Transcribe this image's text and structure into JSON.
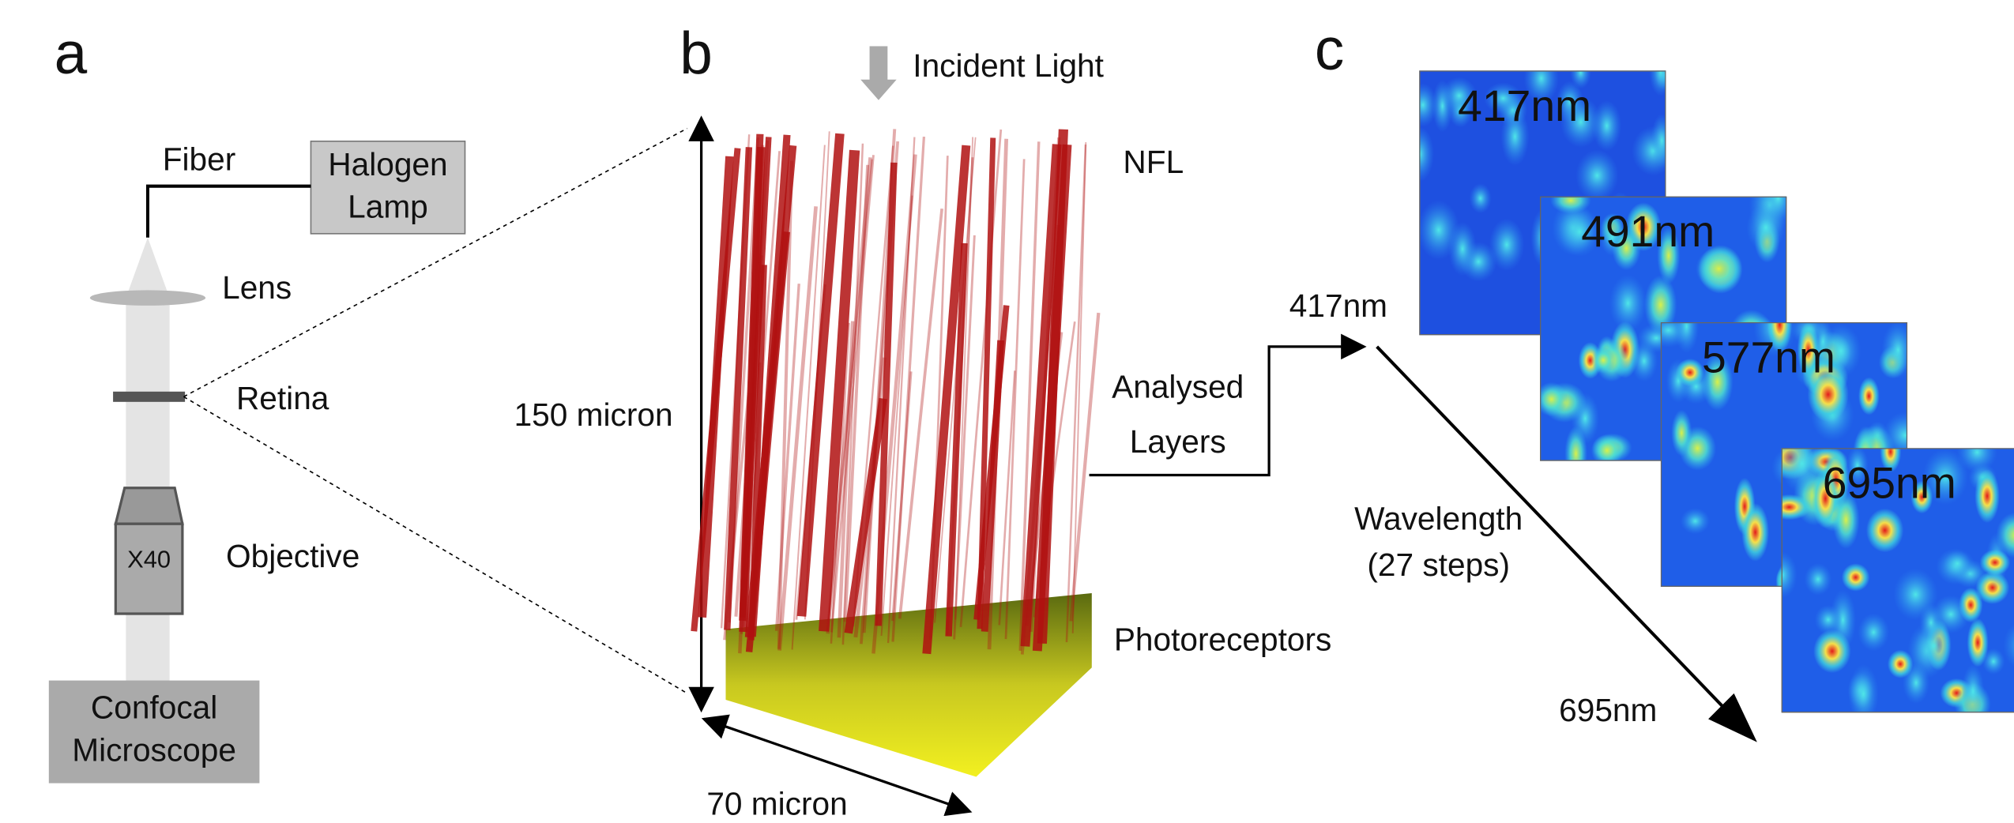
{
  "panel_a": {
    "label": "a",
    "fiber": "Fiber",
    "lamp": [
      "Halogen",
      "Lamp"
    ],
    "lens": "Lens",
    "retina": "Retina",
    "magnification": "X40",
    "objective": "Objective",
    "microscope": [
      "Confocal",
      "Microscope"
    ]
  },
  "panel_b": {
    "label": "b",
    "incident": "Incident Light",
    "nfl": "NFL",
    "height": "150 micron",
    "width": "70 micron",
    "analysed": [
      "Analysed",
      "Layers"
    ],
    "photoreceptors": "Photoreceptors"
  },
  "panel_c": {
    "label": "c",
    "start": "417nm",
    "end": "695nm",
    "wavelength": [
      "Wavelength",
      "(27 steps)"
    ],
    "images": [
      "417nm",
      "491nm",
      "577nm",
      "695nm"
    ]
  }
}
